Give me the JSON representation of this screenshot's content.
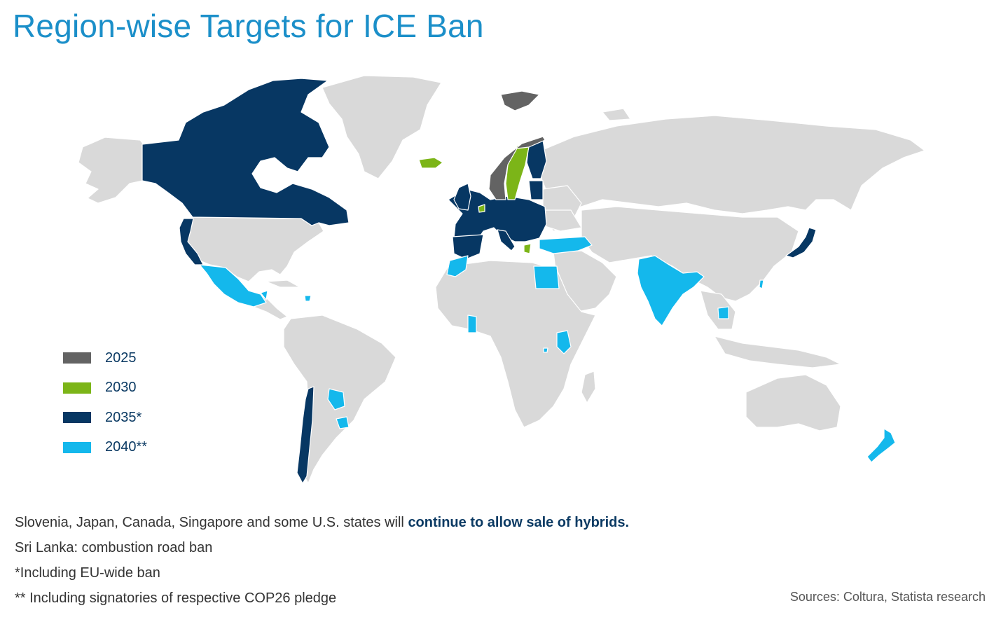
{
  "title": "Region-wise Targets for ICE Ban",
  "colors": {
    "y2025": "#636363",
    "y2030": "#7cb518",
    "y2035": "#073763",
    "y2040": "#14b8ec",
    "land": "#d9d9d9",
    "border": "#ffffff"
  },
  "legend": [
    {
      "label": "2025",
      "color": "#636363"
    },
    {
      "label": "2030",
      "color": "#7cb518"
    },
    {
      "label": "2035*",
      "color": "#073763"
    },
    {
      "label": "2040**",
      "color": "#14b8ec"
    }
  ],
  "notes": {
    "line1_prefix": "Slovenia, Japan, Canada, Singapore and some U.S. states will ",
    "line1_emphasis": "continue to allow sale of hybrids.",
    "line2": "Sri Lanka: combustion road ban",
    "line3": "*Including EU-wide ban",
    "line4": "** Including signatories of respective COP26 pledge"
  },
  "sources": "Sources: Coltura, Statista research"
}
